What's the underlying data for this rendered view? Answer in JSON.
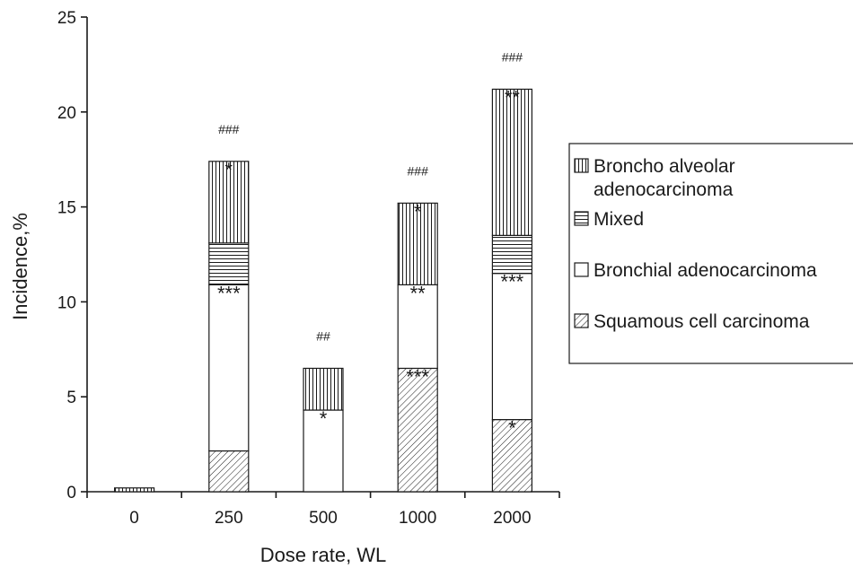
{
  "chart_data": {
    "type": "bar",
    "stacked": true,
    "xlabel": "Dose rate, WL",
    "ylabel": "Incidence,%",
    "ylim": [
      0,
      25
    ],
    "yticks": [
      0,
      5,
      10,
      15,
      20,
      25
    ],
    "categories": [
      "0",
      "250",
      "500",
      "1000",
      "2000"
    ],
    "series": [
      {
        "name": "Squamous cell carcinoma",
        "pattern": "diagonal",
        "values": [
          0,
          2.15,
          0,
          6.5,
          3.8
        ]
      },
      {
        "name": "Bronchial adenocarcinoma",
        "pattern": "blank",
        "values": [
          0,
          8.75,
          4.3,
          4.4,
          7.7
        ]
      },
      {
        "name": "Mixed",
        "pattern": "horizontal",
        "values": [
          0,
          2.2,
          0,
          0,
          2.0
        ]
      },
      {
        "name": "Broncho alveolar adenocarcinoma",
        "pattern": "vertical",
        "values": [
          0.2,
          4.3,
          2.2,
          4.3,
          7.7
        ]
      }
    ],
    "annotations": [
      {
        "category": "250",
        "series": "Broncho alveolar adenocarcinoma",
        "text": "*"
      },
      {
        "category": "250",
        "series": "Bronchial adenocarcinoma",
        "text": "***"
      },
      {
        "category": "500",
        "series": "Bronchial adenocarcinoma",
        "text": "*"
      },
      {
        "category": "1000",
        "series": "Broncho alveolar adenocarcinoma",
        "text": "*"
      },
      {
        "category": "1000",
        "series": "Bronchial adenocarcinoma",
        "text": "**"
      },
      {
        "category": "1000",
        "series": "Squamous cell carcinoma",
        "text": "***"
      },
      {
        "category": "2000",
        "series": "Broncho alveolar adenocarcinoma",
        "text": "**"
      },
      {
        "category": "2000",
        "series": "Bronchial adenocarcinoma",
        "text": "***"
      },
      {
        "category": "2000",
        "series": "Squamous cell carcinoma",
        "text": "*"
      }
    ],
    "top_annotations": [
      {
        "category": "250",
        "text": "###"
      },
      {
        "category": "500",
        "text": "##"
      },
      {
        "category": "1000",
        "text": "###"
      },
      {
        "category": "2000",
        "text": "###"
      }
    ],
    "legend": {
      "position": "right",
      "entries": [
        {
          "series": "Broncho alveolar adenocarcinoma",
          "lines": [
            "Broncho alveolar",
            "adenocarcinoma"
          ]
        },
        {
          "series": "Mixed",
          "lines": [
            "Mixed"
          ]
        },
        {
          "series": "Bronchial adenocarcinoma",
          "lines": [
            "Bronchial adenocarcinoma"
          ]
        },
        {
          "series": "Squamous cell carcinoma",
          "lines": [
            "Squamous cell carcinoma"
          ]
        }
      ]
    },
    "grid": false
  }
}
